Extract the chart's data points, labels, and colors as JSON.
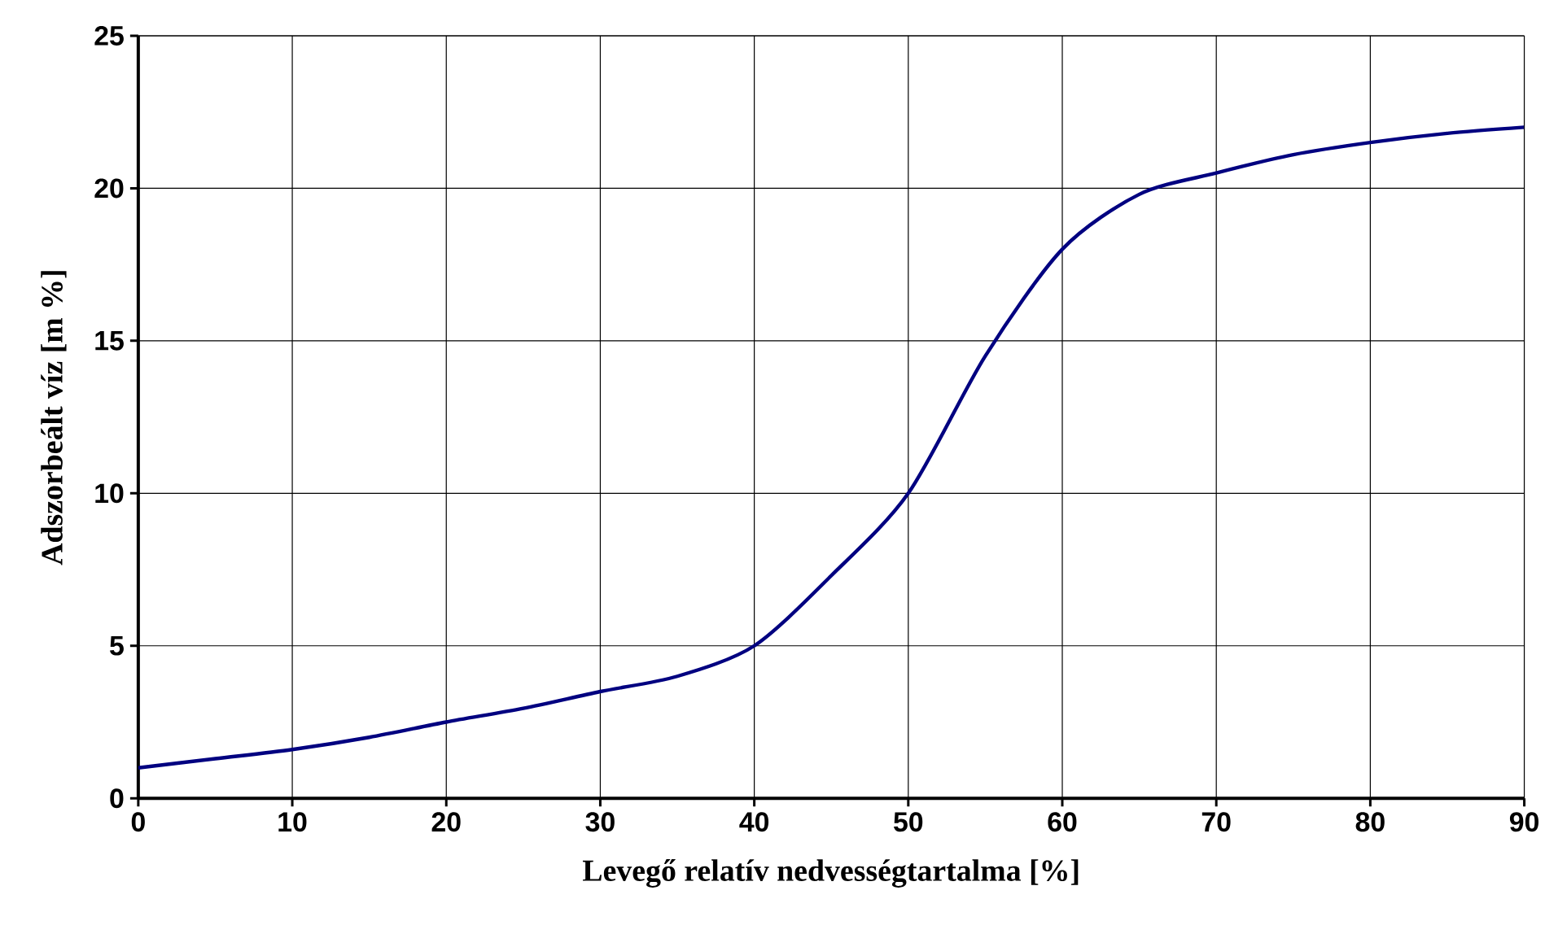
{
  "chart_data": {
    "type": "line",
    "xlabel": "Levegő relatív nedvességtartalma [%]",
    "ylabel": "Adszorbeált víz [m %]",
    "x": [
      0,
      5,
      10,
      15,
      20,
      25,
      30,
      35,
      40,
      45,
      50,
      55,
      60,
      65,
      70,
      75,
      80,
      85,
      90
    ],
    "series": [
      {
        "color": "#000080",
        "values": [
          1,
          1.3,
          1.6,
          2.0,
          2.5,
          2.95,
          3.5,
          4.0,
          5,
          7.3,
          10,
          14.5,
          18,
          19.8,
          20.5,
          21.1,
          21.5,
          21.8,
          22
        ]
      }
    ],
    "xlim": [
      0,
      90
    ],
    "ylim": [
      0,
      25
    ],
    "xticks": [
      0,
      10,
      20,
      30,
      40,
      50,
      60,
      70,
      80,
      90
    ],
    "yticks": [
      0,
      5,
      10,
      15,
      20,
      25
    ],
    "grid": true,
    "marker": "none",
    "line_style": "solid"
  }
}
